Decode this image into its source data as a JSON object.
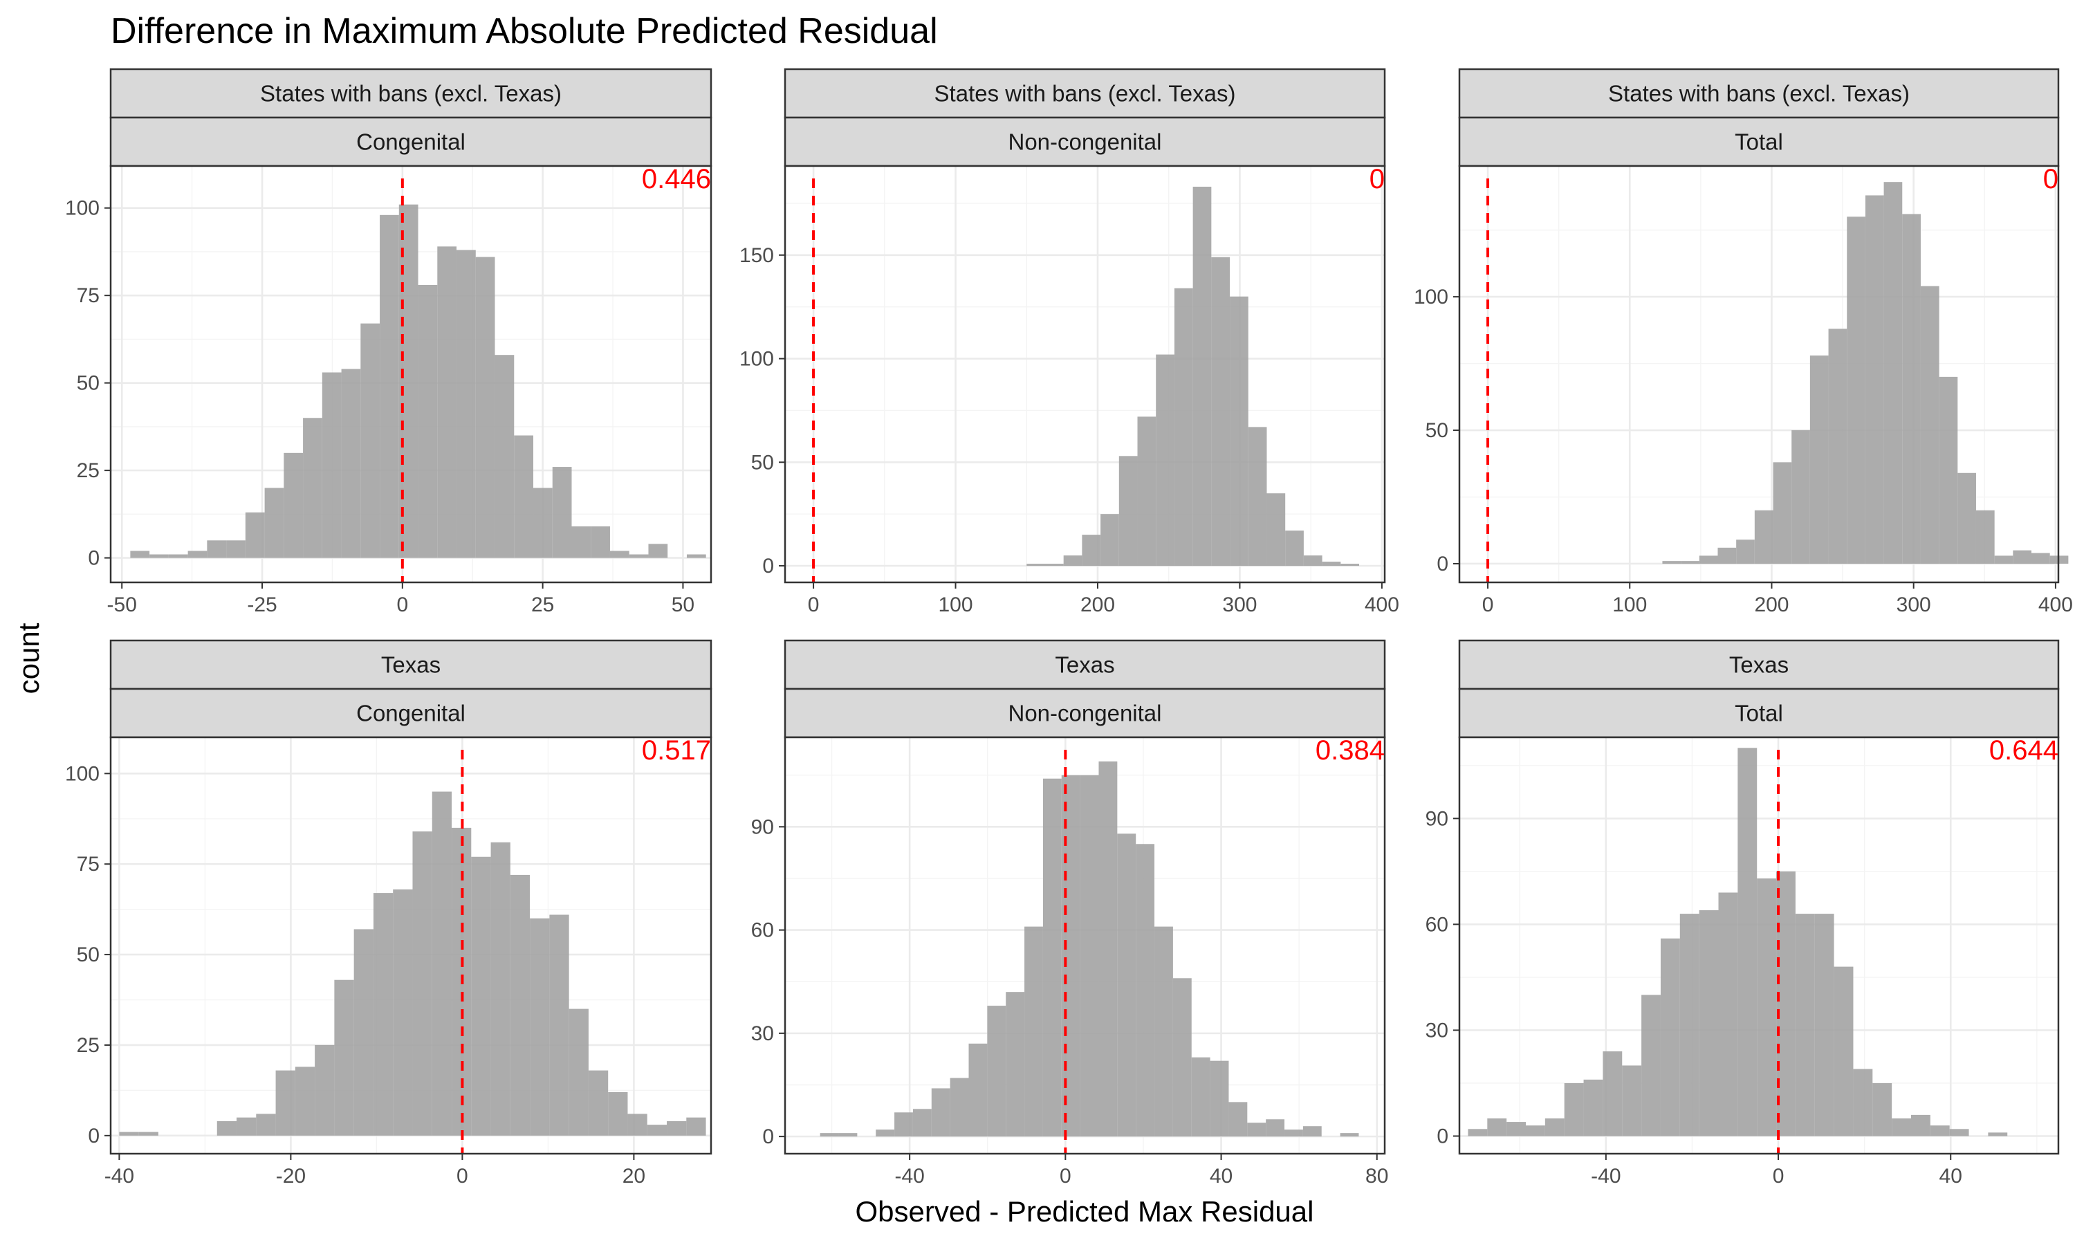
{
  "chart_data": {
    "type": "bar",
    "title": "Difference in Maximum Absolute Predicted Residual",
    "xlabel": "Observed - Predicted Max Residual",
    "ylabel": "count",
    "grid": true,
    "reference_line_x": 0,
    "reference_line_color": "#ff0000",
    "bar_color": "#a0a0a0",
    "panels": [
      {
        "row_label": "States with bans (excl. Texas)",
        "col_label": "Congenital",
        "p_value": "0.446",
        "xlim": [
          -52,
          55
        ],
        "ylim": [
          -7,
          112
        ],
        "xticks": [
          -50,
          -25,
          0,
          25,
          50
        ],
        "xtick_labels": [
          "-50",
          "-25",
          "0",
          "25",
          "50"
        ],
        "yticks": [
          0,
          25,
          50,
          75,
          100
        ],
        "ytick_labels": [
          "0",
          "25",
          "50",
          "75",
          "100"
        ],
        "bin_start": -48.5,
        "bin_width": 3.42,
        "counts": [
          2,
          1,
          1,
          2,
          5,
          5,
          13,
          20,
          30,
          40,
          53,
          54,
          67,
          98,
          101,
          78,
          89,
          88,
          86,
          58,
          35,
          20,
          26,
          9,
          9,
          2,
          1,
          4,
          0,
          1
        ]
      },
      {
        "row_label": "States with bans (excl. Texas)",
        "col_label": "Non-congenital",
        "p_value": "0",
        "xlim": [
          -20,
          402
        ],
        "ylim": [
          -8,
          193
        ],
        "xticks": [
          0,
          100,
          200,
          300,
          400
        ],
        "xtick_labels": [
          "0",
          "100",
          "200",
          "300",
          "400"
        ],
        "yticks": [
          0,
          50,
          100,
          150
        ],
        "ytick_labels": [
          "0",
          "50",
          "100",
          "150"
        ],
        "bin_start": 150,
        "bin_width": 13.0,
        "counts": [
          1,
          1,
          5,
          15,
          25,
          53,
          72,
          102,
          134,
          183,
          149,
          130,
          67,
          35,
          17,
          5,
          2,
          1
        ]
      },
      {
        "row_label": "States with bans (excl. Texas)",
        "col_label": "Total",
        "p_value": "0",
        "xlim": [
          -20,
          402
        ],
        "ylim": [
          -7,
          149
        ],
        "xticks": [
          0,
          100,
          200,
          300,
          400
        ],
        "xtick_labels": [
          "0",
          "100",
          "200",
          "300",
          "400"
        ],
        "yticks": [
          0,
          50,
          100
        ],
        "ytick_labels": [
          "0",
          "50",
          "100"
        ],
        "bin_start": 123,
        "bin_width": 13.0,
        "counts": [
          1,
          1,
          3,
          6,
          9,
          20,
          38,
          50,
          78,
          88,
          130,
          138,
          143,
          131,
          104,
          70,
          34,
          20,
          3,
          5,
          4,
          3
        ]
      },
      {
        "row_label": "Texas",
        "col_label": "Congenital",
        "p_value": "0.517",
        "xlim": [
          -41,
          29
        ],
        "ylim": [
          -5,
          110
        ],
        "xticks": [
          -40,
          -20,
          0,
          20
        ],
        "xtick_labels": [
          "-40",
          "-20",
          "0",
          "20"
        ],
        "yticks": [
          0,
          25,
          50,
          75,
          100
        ],
        "ytick_labels": [
          "0",
          "25",
          "50",
          "75",
          "100"
        ],
        "bin_start": -40,
        "bin_width": 2.28,
        "counts": [
          1,
          1,
          0,
          0,
          0,
          4,
          5,
          6,
          18,
          19,
          25,
          43,
          57,
          67,
          68,
          84,
          95,
          85,
          77,
          81,
          72,
          60,
          61,
          35,
          18,
          12,
          6,
          3,
          4,
          5
        ]
      },
      {
        "row_label": "Texas",
        "col_label": "Non-congenital",
        "p_value": "0.384",
        "xlim": [
          -72,
          82
        ],
        "ylim": [
          -5,
          116
        ],
        "xticks": [
          -40,
          0,
          40,
          80
        ],
        "xtick_labels": [
          "-40",
          "0",
          "40",
          "80"
        ],
        "yticks": [
          0,
          30,
          60,
          90
        ],
        "ytick_labels": [
          "0",
          "30",
          "60",
          "90"
        ],
        "bin_start": -63,
        "bin_width": 4.77,
        "counts": [
          1,
          1,
          0,
          2,
          7,
          8,
          14,
          17,
          27,
          38,
          42,
          61,
          104,
          105,
          105,
          109,
          88,
          85,
          61,
          46,
          23,
          22,
          10,
          4,
          5,
          2,
          3,
          0,
          1
        ]
      },
      {
        "row_label": "Texas",
        "col_label": "Total",
        "p_value": "0.644",
        "xlim": [
          -74,
          65
        ],
        "ylim": [
          -5,
          113
        ],
        "xticks": [
          -40,
          0,
          40
        ],
        "xtick_labels": [
          "-40",
          "0",
          "40"
        ],
        "yticks": [
          0,
          30,
          60,
          90
        ],
        "ytick_labels": [
          "0",
          "30",
          "60",
          "90"
        ],
        "bin_start": -72,
        "bin_width": 4.47,
        "counts": [
          2,
          5,
          4,
          3,
          5,
          15,
          16,
          24,
          20,
          40,
          56,
          63,
          64,
          69,
          110,
          73,
          75,
          63,
          63,
          48,
          19,
          15,
          5,
          6,
          3,
          2,
          0,
          1
        ]
      }
    ]
  }
}
